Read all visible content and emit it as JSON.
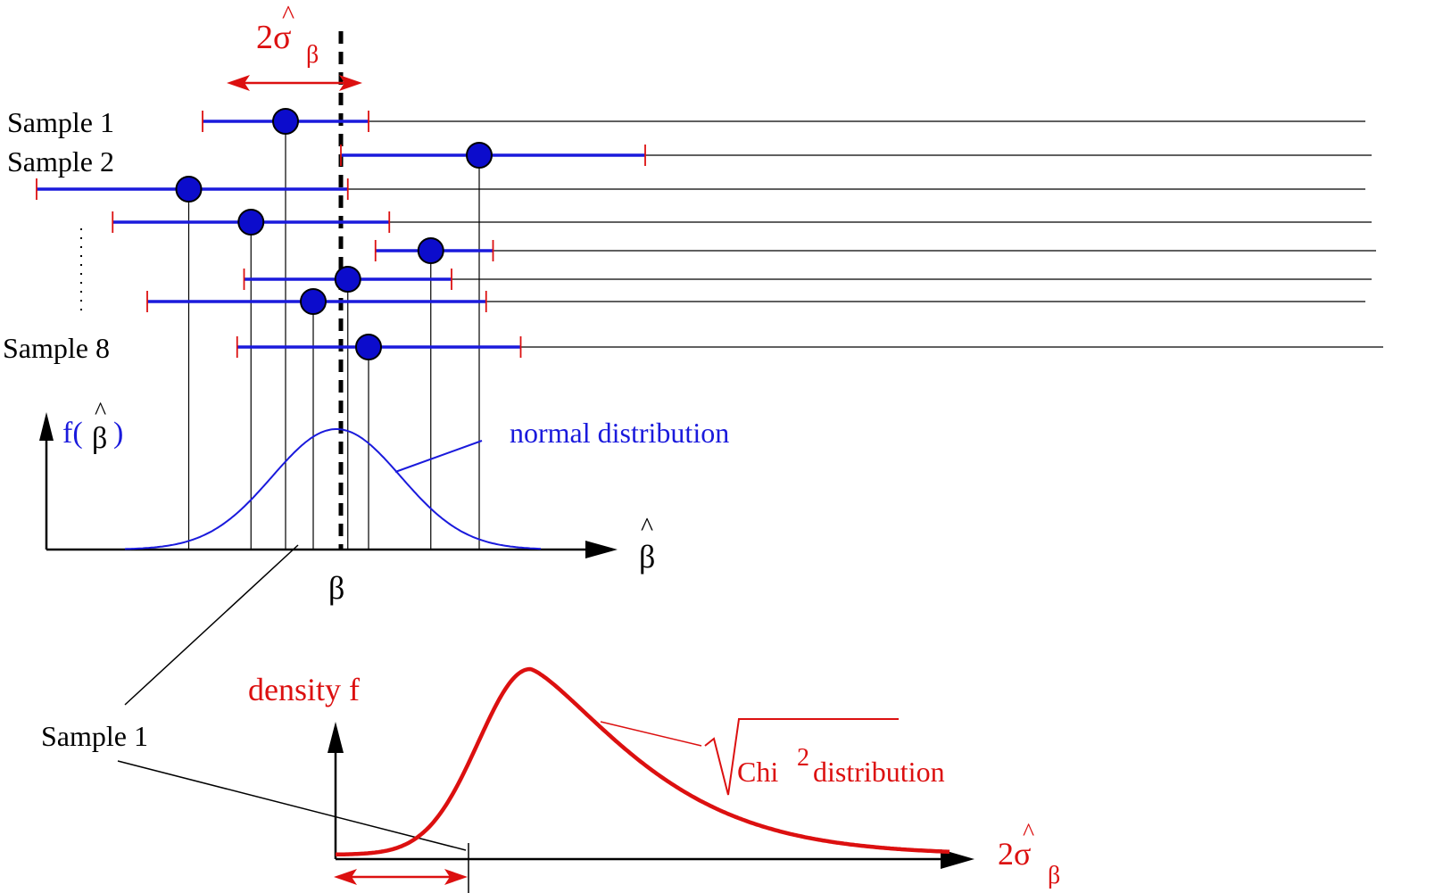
{
  "colors": {
    "blue": "#1a1adc",
    "red": "#dc1010",
    "dot_fill": "#0c0ccc",
    "black": "#000000"
  },
  "labels": {
    "sample_1": "Sample 1",
    "sample_2": "Sample 2",
    "sample_8": "Sample 8",
    "width_label": "2σ",
    "width_hat": "^",
    "width_sub": "β",
    "f_prefix": "f(",
    "f_suffix": ")",
    "beta": "β",
    "beta_hat_symbol": "^",
    "normal_distribution": "normal distribution",
    "axis_hat_beta": "β",
    "true_beta": "β",
    "sample_1_lower": "Sample 1",
    "density_f": "density f",
    "chi": "Chi",
    "chi_exp": "2",
    "distribution": "distribution",
    "sigma_axis": "2σ",
    "sigma_axis_sub": "β"
  },
  "samples": [
    {
      "estimate": -0.4,
      "lower": -1.0,
      "upper": 0.2
    },
    {
      "estimate": 1.0,
      "lower": 0.0,
      "upper": 2.2
    },
    {
      "estimate": -1.1,
      "lower": -2.2,
      "upper": 0.05
    },
    {
      "estimate": -0.65,
      "lower": -1.65,
      "upper": 0.35
    },
    {
      "estimate": 0.65,
      "lower": 0.25,
      "upper": 1.1
    },
    {
      "estimate": 0.05,
      "lower": -0.7,
      "upper": 0.8
    },
    {
      "estimate": -0.2,
      "lower": -1.4,
      "upper": 1.05
    },
    {
      "estimate": 0.2,
      "lower": -0.75,
      "upper": 1.3
    }
  ]
}
